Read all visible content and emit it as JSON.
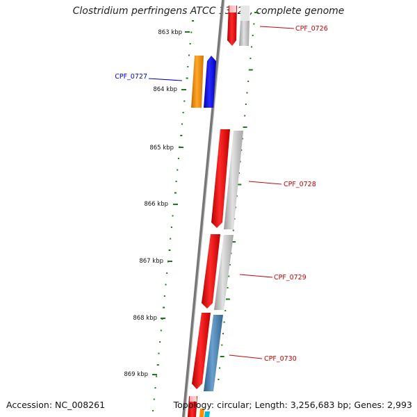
{
  "title": "Clostridium perfringens ATCC 13124, complete genome",
  "footer": {
    "accession": "Accession: NC_008261",
    "summary": "Topology: circular; Length: 3,256,683 bp; Genes: 2,993"
  },
  "ticks": [
    "863 kbp",
    "864 kbp",
    "865 kbp",
    "866 kbp",
    "867 kbp",
    "868 kbp",
    "869 kbp"
  ],
  "gene_labels": [
    {
      "name": "CPF_0726",
      "color": "#cc0000"
    },
    {
      "name": "CPF_0727",
      "color": "#0000cc"
    },
    {
      "name": "CPF_0728",
      "color": "#cc0000"
    },
    {
      "name": "CPF_0729",
      "color": "#cc0000"
    },
    {
      "name": "CPF_0730",
      "color": "#cc0000"
    }
  ],
  "colors": {
    "backbone": "#777777",
    "ticks": "#1a7a1a",
    "cds": "#ff0000",
    "gene_grey": "#bbbbbb",
    "orange": "#ff8c00",
    "blue": "#0000ee",
    "steelblue": "#4682b4"
  }
}
